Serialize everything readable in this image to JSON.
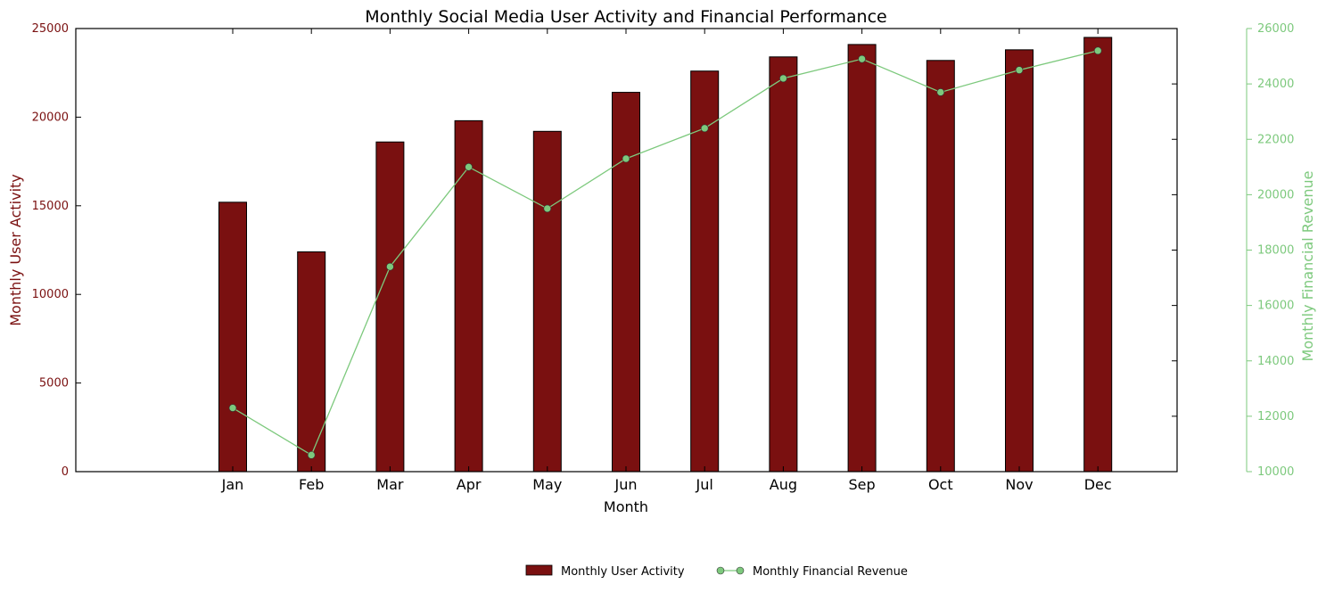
{
  "chart_data": {
    "type": "bar",
    "title": "Monthly Social Media User Activity and Financial Performance",
    "xlabel": "Month",
    "categories": [
      "Jan",
      "Feb",
      "Mar",
      "Apr",
      "May",
      "Jun",
      "Jul",
      "Aug",
      "Sep",
      "Oct",
      "Nov",
      "Dec"
    ],
    "series": [
      {
        "name": "Monthly User Activity",
        "type": "bar",
        "axis": "left",
        "color": "#7a1010",
        "values": [
          15200,
          12400,
          18600,
          19800,
          19200,
          21400,
          22600,
          23400,
          24100,
          23200,
          23800,
          24500
        ]
      },
      {
        "name": "Monthly Financial Revenue",
        "type": "line",
        "axis": "right",
        "color": "#7dc97d",
        "values": [
          12300,
          10600,
          17400,
          21000,
          19500,
          21300,
          22400,
          24200,
          24900,
          23700,
          24500,
          25200
        ]
      }
    ],
    "y_left": {
      "label": "Monthly User Activity",
      "range": [
        0,
        25000
      ],
      "ticks": [
        "0",
        "5000",
        "10000",
        "15000",
        "20000",
        "25000"
      ],
      "color": "#7a1010"
    },
    "y_right": {
      "label": "Monthly Financial Revenue",
      "range": [
        10000,
        26000
      ],
      "ticks": [
        "10000",
        "12000",
        "14000",
        "16000",
        "18000",
        "20000",
        "22000",
        "24000",
        "26000"
      ],
      "color": "#7dc97d"
    },
    "grid": false,
    "legend_position": "bottom-center"
  }
}
